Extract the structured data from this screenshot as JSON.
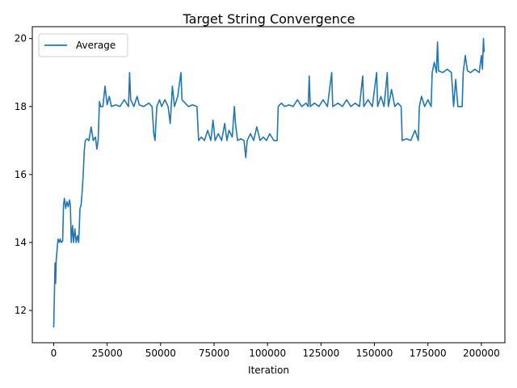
{
  "chart_data": {
    "type": "line",
    "title": "Target String Convergence",
    "xlabel": "Iteration",
    "ylabel": "",
    "xlim": [
      -10000,
      211000
    ],
    "ylim": [
      11.05,
      20.35
    ],
    "xticks": [
      0,
      25000,
      50000,
      75000,
      100000,
      125000,
      150000,
      175000,
      200000
    ],
    "yticks": [
      12,
      14,
      16,
      18,
      20
    ],
    "grid": false,
    "legend": {
      "position": "top-left",
      "entries": [
        "Average"
      ]
    },
    "series": [
      {
        "name": "Average",
        "color": "#1f77b4",
        "points": [
          [
            0,
            11.5
          ],
          [
            300,
            12.4
          ],
          [
            600,
            13.4
          ],
          [
            900,
            12.8
          ],
          [
            1200,
            13.5
          ],
          [
            1600,
            13.8
          ],
          [
            2000,
            14.1
          ],
          [
            2600,
            14.0
          ],
          [
            3000,
            14.1
          ],
          [
            3600,
            14.0
          ],
          [
            4200,
            14.05
          ],
          [
            4600,
            15.1
          ],
          [
            5000,
            15.3
          ],
          [
            5600,
            15.0
          ],
          [
            6200,
            15.2
          ],
          [
            6800,
            15.05
          ],
          [
            7400,
            15.25
          ],
          [
            7800,
            15.1
          ],
          [
            8200,
            14.0
          ],
          [
            8800,
            14.5
          ],
          [
            9300,
            14.0
          ],
          [
            9900,
            14.4
          ],
          [
            10500,
            14.0
          ],
          [
            11100,
            14.2
          ],
          [
            11700,
            14.0
          ],
          [
            12300,
            15.0
          ],
          [
            12800,
            15.1
          ],
          [
            13300,
            15.5
          ],
          [
            13800,
            16.0
          ],
          [
            14300,
            16.7
          ],
          [
            14800,
            17.0
          ],
          [
            15600,
            17.05
          ],
          [
            16500,
            17.0
          ],
          [
            17500,
            17.4
          ],
          [
            18500,
            17.0
          ],
          [
            19500,
            17.1
          ],
          [
            20200,
            16.75
          ],
          [
            20800,
            17.0
          ],
          [
            21400,
            18.15
          ],
          [
            22000,
            18.0
          ],
          [
            23000,
            18.0
          ],
          [
            24000,
            18.6
          ],
          [
            25000,
            18.05
          ],
          [
            26000,
            18.3
          ],
          [
            27000,
            18.0
          ],
          [
            29000,
            18.05
          ],
          [
            31000,
            18.0
          ],
          [
            33000,
            18.2
          ],
          [
            35000,
            18.0
          ],
          [
            35500,
            19.0
          ],
          [
            36000,
            18.2
          ],
          [
            37500,
            18.0
          ],
          [
            39000,
            18.3
          ],
          [
            40000,
            18.05
          ],
          [
            42000,
            18.0
          ],
          [
            44500,
            18.1
          ],
          [
            46000,
            18.0
          ],
          [
            46800,
            17.2
          ],
          [
            47400,
            17.0
          ],
          [
            48200,
            18.0
          ],
          [
            49500,
            18.2
          ],
          [
            50500,
            18.0
          ],
          [
            52000,
            18.2
          ],
          [
            53500,
            18.0
          ],
          [
            54500,
            17.5
          ],
          [
            55500,
            18.6
          ],
          [
            56500,
            18.0
          ],
          [
            58000,
            18.3
          ],
          [
            59500,
            19.0
          ],
          [
            60000,
            18.2
          ],
          [
            61500,
            18.1
          ],
          [
            63000,
            18.0
          ],
          [
            65000,
            18.05
          ],
          [
            67000,
            18.0
          ],
          [
            67800,
            17.0
          ],
          [
            69000,
            17.1
          ],
          [
            70500,
            17.0
          ],
          [
            72000,
            17.3
          ],
          [
            73500,
            17.0
          ],
          [
            74500,
            17.6
          ],
          [
            75500,
            17.0
          ],
          [
            77000,
            17.2
          ],
          [
            78500,
            17.0
          ],
          [
            80000,
            17.5
          ],
          [
            81000,
            17.0
          ],
          [
            82000,
            17.3
          ],
          [
            83500,
            17.1
          ],
          [
            84500,
            18.0
          ],
          [
            85000,
            17.5
          ],
          [
            86000,
            17.0
          ],
          [
            87500,
            17.05
          ],
          [
            89000,
            17.0
          ],
          [
            89800,
            16.5
          ],
          [
            90500,
            17.0
          ],
          [
            92000,
            17.2
          ],
          [
            93500,
            17.0
          ],
          [
            95000,
            17.4
          ],
          [
            96500,
            17.0
          ],
          [
            98000,
            17.1
          ],
          [
            99500,
            17.0
          ],
          [
            101000,
            17.2
          ],
          [
            103000,
            17.0
          ],
          [
            104500,
            17.0
          ],
          [
            105000,
            18.0
          ],
          [
            106500,
            18.1
          ],
          [
            108000,
            18.0
          ],
          [
            110000,
            18.05
          ],
          [
            112000,
            18.0
          ],
          [
            114000,
            18.2
          ],
          [
            116000,
            18.0
          ],
          [
            118000,
            18.1
          ],
          [
            119000,
            18.0
          ],
          [
            119500,
            18.9
          ],
          [
            120000,
            18.0
          ],
          [
            122000,
            18.1
          ],
          [
            124000,
            18.0
          ],
          [
            126000,
            18.2
          ],
          [
            128000,
            18.0
          ],
          [
            130000,
            19.0
          ],
          [
            130500,
            18.0
          ],
          [
            133000,
            18.1
          ],
          [
            135000,
            18.0
          ],
          [
            137000,
            18.2
          ],
          [
            139000,
            18.0
          ],
          [
            141000,
            18.1
          ],
          [
            143000,
            18.0
          ],
          [
            144500,
            18.9
          ],
          [
            145000,
            18.0
          ],
          [
            147000,
            18.2
          ],
          [
            149000,
            18.0
          ],
          [
            151000,
            19.0
          ],
          [
            151500,
            18.0
          ],
          [
            153000,
            18.3
          ],
          [
            154500,
            18.0
          ],
          [
            156000,
            19.0
          ],
          [
            156500,
            18.0
          ],
          [
            158000,
            18.5
          ],
          [
            159500,
            18.0
          ],
          [
            161000,
            18.1
          ],
          [
            162500,
            18.0
          ],
          [
            163000,
            17.0
          ],
          [
            165000,
            17.05
          ],
          [
            167000,
            17.0
          ],
          [
            169000,
            17.3
          ],
          [
            170500,
            17.0
          ],
          [
            171000,
            18.0
          ],
          [
            172000,
            18.3
          ],
          [
            173500,
            18.0
          ],
          [
            175000,
            18.2
          ],
          [
            176500,
            18.0
          ],
          [
            177000,
            19.0
          ],
          [
            178000,
            19.3
          ],
          [
            179000,
            19.0
          ],
          [
            179500,
            19.9
          ],
          [
            180000,
            19.05
          ],
          [
            182000,
            19.0
          ],
          [
            184000,
            19.1
          ],
          [
            186000,
            19.0
          ],
          [
            187000,
            18.0
          ],
          [
            188000,
            18.8
          ],
          [
            189000,
            18.0
          ],
          [
            191000,
            18.0
          ],
          [
            191500,
            19.0
          ],
          [
            192500,
            19.5
          ],
          [
            193500,
            19.05
          ],
          [
            195000,
            19.0
          ],
          [
            197000,
            19.1
          ],
          [
            199000,
            19.0
          ],
          [
            200000,
            19.5
          ],
          [
            200500,
            19.1
          ],
          [
            201000,
            20.0
          ],
          [
            201300,
            19.6
          ]
        ]
      }
    ]
  }
}
